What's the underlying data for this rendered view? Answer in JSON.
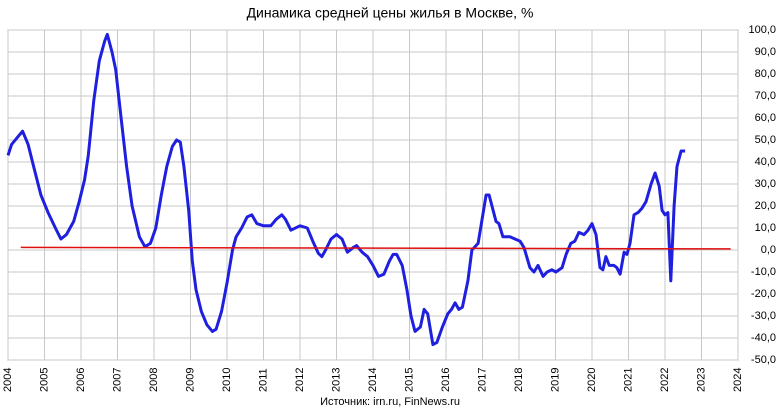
{
  "chart_data": {
    "type": "line",
    "title": "Динамика средней цены жилья в Москве, %",
    "source": "Источник: irn.ru, FinNews.ru",
    "xlim": [
      2004,
      2024
    ],
    "xticks": [
      2004,
      2005,
      2006,
      2007,
      2008,
      2009,
      2010,
      2011,
      2012,
      2013,
      2014,
      2015,
      2016,
      2017,
      2018,
      2019,
      2020,
      2021,
      2022,
      2023,
      2024
    ],
    "ylim": [
      -50,
      100
    ],
    "yticks": [
      {
        "value": -50,
        "label": "-50,0"
      },
      {
        "value": -40,
        "label": "-40,0"
      },
      {
        "value": -30,
        "label": "-30,0"
      },
      {
        "value": -20,
        "label": "-20,0"
      },
      {
        "value": -10,
        "label": "-10,0"
      },
      {
        "value": 0,
        "label": "0,0"
      },
      {
        "value": 10,
        "label": "10,0"
      },
      {
        "value": 20,
        "label": "20,0"
      },
      {
        "value": 30,
        "label": "30,0"
      },
      {
        "value": 40,
        "label": "40,0"
      },
      {
        "value": 50,
        "label": "50,0"
      },
      {
        "value": 60,
        "label": "60,0"
      },
      {
        "value": 70,
        "label": "70,0"
      },
      {
        "value": 80,
        "label": "80,0"
      },
      {
        "value": 90,
        "label": "90,0"
      },
      {
        "value": 100,
        "label": "100,0"
      }
    ],
    "grid": true,
    "series": [
      {
        "color": "#1f1fe0",
        "x": [
          2004.0,
          2004.1,
          2004.3,
          2004.4,
          2004.55,
          2004.7,
          2004.9,
          2005.1,
          2005.3,
          2005.45,
          2005.6,
          2005.8,
          2005.95,
          2006.1,
          2006.2,
          2006.35,
          2006.5,
          2006.65,
          2006.72,
          2006.85,
          2006.95,
          2007.1,
          2007.25,
          2007.4,
          2007.6,
          2007.75,
          2007.9,
          2008.05,
          2008.2,
          2008.35,
          2008.5,
          2008.62,
          2008.72,
          2008.82,
          2008.95,
          2009.05,
          2009.15,
          2009.3,
          2009.45,
          2009.6,
          2009.7,
          2009.85,
          2010.0,
          2010.15,
          2010.25,
          2010.4,
          2010.55,
          2010.68,
          2010.82,
          2011.0,
          2011.2,
          2011.35,
          2011.5,
          2011.6,
          2011.75,
          2012.0,
          2012.2,
          2012.35,
          2012.5,
          2012.6,
          2012.7,
          2012.85,
          2013.0,
          2013.15,
          2013.3,
          2013.45,
          2013.55,
          2013.7,
          2013.85,
          2014.0,
          2014.15,
          2014.3,
          2014.45,
          2014.55,
          2014.65,
          2014.8,
          2014.93,
          2015.04,
          2015.15,
          2015.3,
          2015.4,
          2015.5,
          2015.64,
          2015.75,
          2015.9,
          2016.05,
          2016.15,
          2016.25,
          2016.35,
          2016.45,
          2016.6,
          2016.71,
          2016.88,
          2017.1,
          2017.18,
          2017.37,
          2017.45,
          2017.56,
          2017.75,
          2017.89,
          2018.03,
          2018.14,
          2018.3,
          2018.41,
          2018.52,
          2018.66,
          2018.77,
          2018.9,
          2019.01,
          2019.18,
          2019.29,
          2019.42,
          2019.53,
          2019.64,
          2019.78,
          2019.89,
          2020.0,
          2020.11,
          2020.22,
          2020.3,
          2020.38,
          2020.47,
          2020.6,
          2020.68,
          2020.77,
          2020.88,
          2020.96,
          2021.04,
          2021.15,
          2021.26,
          2021.37,
          2021.48,
          2021.62,
          2021.73,
          2021.84,
          2021.92,
          2022.0,
          2022.08,
          2022.16,
          2022.25,
          2022.33,
          2022.44,
          2022.55
        ],
        "values": [
          43,
          48,
          52,
          54,
          48,
          38,
          25,
          17,
          10,
          5,
          7,
          13,
          22,
          32,
          43,
          68,
          86,
          95,
          98,
          90,
          82,
          60,
          38,
          20,
          6,
          1.5,
          3,
          10,
          25,
          38,
          47,
          50,
          49,
          38,
          18,
          -5,
          -18,
          -28,
          -34,
          -37,
          -36,
          -28,
          -15,
          0,
          6,
          10,
          15,
          16,
          12,
          11,
          11,
          14,
          16,
          14,
          9,
          11,
          10,
          4,
          -1.5,
          -3,
          0,
          5,
          7,
          5,
          -1,
          1,
          2,
          -1,
          -3,
          -7,
          -12,
          -11,
          -5,
          -2,
          -2,
          -7,
          -18,
          -30,
          -37,
          -35,
          -27,
          -29,
          -43,
          -42,
          -35,
          -29,
          -27,
          -24,
          -27,
          -26,
          -14,
          0,
          3,
          25,
          25,
          13,
          12,
          6,
          6,
          5,
          4,
          1,
          -8,
          -10,
          -7,
          -12,
          -10,
          -9,
          -10,
          -8,
          -2,
          3,
          4,
          8,
          7,
          9,
          12,
          7,
          -8,
          -9,
          -3,
          -7,
          -7,
          -8,
          -11,
          -1,
          -2,
          3,
          16,
          17,
          19,
          22,
          30,
          35,
          29,
          18,
          16,
          17,
          -14,
          20,
          38,
          45,
          45
        ]
      },
      {
        "color": "#e01010",
        "x": [
          2004.35,
          2023.8
        ],
        "values": [
          1.2,
          0.5
        ]
      }
    ]
  }
}
